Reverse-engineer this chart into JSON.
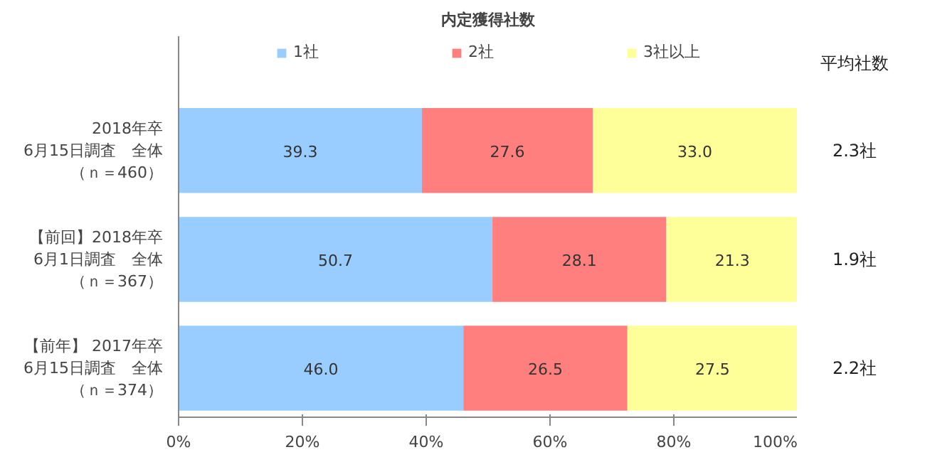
{
  "chart_data": {
    "type": "bar",
    "orientation": "horizontal",
    "stacked": true,
    "title": "内定獲得社数",
    "categories": [
      "2018年卒\n6月15日調査　全体（ｎ＝460）",
      "【前回】2018年卒\n6月1日調査　全体（ｎ＝367）",
      "【前年】 2017年卒\n6月15日調査　全体（ｎ＝374）"
    ],
    "series": [
      {
        "name": "1社",
        "color": "#99ccff",
        "values": [
          39.3,
          50.7,
          46.0
        ],
        "value_labels": [
          "39.3",
          "50.7",
          "46.0"
        ]
      },
      {
        "name": "2社",
        "color": "#ff7f7f",
        "values": [
          27.6,
          28.1,
          26.5
        ],
        "value_labels": [
          "27.6",
          "28.1",
          "26.5"
        ]
      },
      {
        "name": "3社以上",
        "color": "#ffff99",
        "values": [
          33.0,
          21.3,
          27.5
        ],
        "value_labels": [
          "33.0",
          "21.3",
          "27.5"
        ]
      }
    ],
    "xlim": [
      0,
      100
    ],
    "xticks": [
      {
        "value": 0,
        "label": "0%"
      },
      {
        "value": 20,
        "label": "20%"
      },
      {
        "value": 40,
        "label": "40%"
      },
      {
        "value": 60,
        "label": "60%"
      },
      {
        "value": 80,
        "label": "80%"
      },
      {
        "value": 100,
        "label": "100%"
      }
    ],
    "grid": false,
    "legend": "top",
    "annotations": [
      "平均社数",
      "2.3社",
      "1.9社",
      "2.2社"
    ]
  }
}
